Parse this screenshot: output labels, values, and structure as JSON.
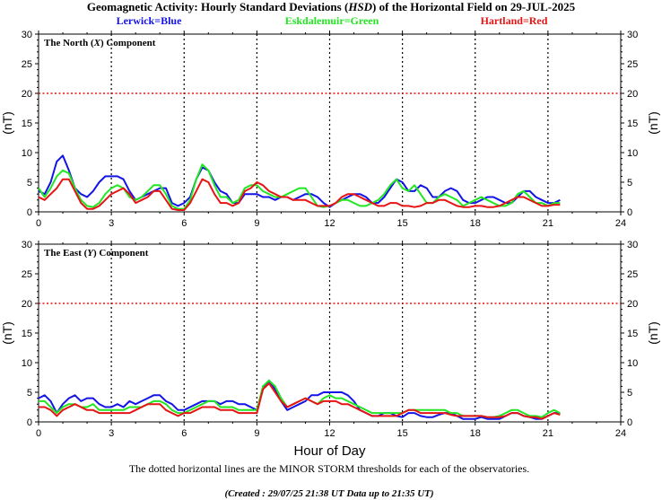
{
  "header": {
    "title_pre": "Geomagnetic Activity: Hourly Standard Deviations (",
    "title_em": "HSD",
    "title_post": ") of the Horizontal Field on 29-JUL-2025"
  },
  "legend": [
    {
      "text": "Lerwick=Blue",
      "color": "#1414e6"
    },
    {
      "text": "Eskdalemuir=Green",
      "color": "#22e622"
    },
    {
      "text": "Hartland=Red",
      "color": "#e61414"
    }
  ],
  "footer": {
    "note": "The dotted horizontal lines are the MINOR STORM thresholds for each of the observatories.",
    "created": "(Created : 29/07/25 21:38 UT  Data up to 21:35 UT)"
  },
  "chart_data": [
    {
      "type": "line",
      "panel_label_pre": "The North (",
      "panel_label_em": "X",
      "panel_label_post": ") Component",
      "xlabel": "",
      "ylabel": "(nT)",
      "xlim": [
        0,
        24
      ],
      "ylim": [
        0,
        30
      ],
      "xticks": [
        "0",
        "3",
        "6",
        "9",
        "12",
        "15",
        "18",
        "21",
        "24"
      ],
      "yticks": [
        "0",
        "5",
        "10",
        "15",
        "20",
        "25",
        "30"
      ],
      "threshold": 20,
      "grid": "dotted vertical lines every 3 hours",
      "x": [
        0.0,
        0.25,
        0.5,
        0.75,
        1.0,
        1.25,
        1.5,
        1.75,
        2.0,
        2.25,
        2.5,
        2.75,
        3.0,
        3.25,
        3.5,
        3.75,
        4.0,
        4.25,
        4.5,
        4.75,
        5.0,
        5.25,
        5.5,
        5.75,
        6.0,
        6.25,
        6.5,
        6.75,
        7.0,
        7.25,
        7.5,
        7.75,
        8.0,
        8.25,
        8.5,
        8.75,
        9.0,
        9.25,
        9.5,
        9.75,
        10.0,
        10.25,
        10.5,
        10.75,
        11.0,
        11.25,
        11.5,
        11.75,
        12.0,
        12.25,
        12.5,
        12.75,
        13.0,
        13.25,
        13.5,
        13.75,
        14.0,
        14.25,
        14.5,
        14.75,
        15.0,
        15.25,
        15.5,
        15.75,
        16.0,
        16.25,
        16.5,
        16.75,
        17.0,
        17.25,
        17.5,
        17.75,
        18.0,
        18.25,
        18.5,
        18.75,
        19.0,
        19.25,
        19.5,
        19.75,
        20.0,
        20.25,
        20.5,
        20.75,
        21.0,
        21.25,
        21.5
      ],
      "series": [
        {
          "name": "Lerwick",
          "color": "#1414e6",
          "values": [
            3.5,
            3.0,
            5.0,
            8.5,
            9.5,
            7.0,
            4.0,
            3.0,
            2.5,
            3.5,
            5.0,
            6.0,
            6.0,
            6.0,
            5.5,
            3.5,
            2.0,
            2.5,
            3.0,
            3.5,
            4.0,
            4.0,
            1.5,
            1.0,
            1.5,
            2.5,
            5.5,
            7.5,
            7.0,
            5.0,
            3.5,
            3.0,
            1.5,
            1.5,
            3.0,
            3.0,
            3.0,
            2.5,
            2.5,
            2.0,
            2.5,
            2.5,
            2.0,
            2.5,
            3.0,
            3.0,
            2.5,
            1.5,
            0.8,
            1.5,
            2.0,
            2.5,
            3.0,
            3.0,
            2.5,
            1.5,
            1.5,
            2.5,
            4.0,
            5.5,
            5.0,
            3.5,
            3.5,
            4.5,
            4.0,
            2.5,
            2.5,
            3.5,
            4.0,
            3.5,
            2.0,
            1.5,
            1.5,
            2.0,
            2.5,
            2.5,
            2.0,
            1.5,
            1.5,
            2.5,
            3.5,
            3.5,
            2.5,
            2.0,
            1.5,
            1.5,
            2.0
          ]
        },
        {
          "name": "Eskdalemuir",
          "color": "#22e622",
          "values": [
            4.0,
            2.5,
            4.0,
            6.0,
            7.0,
            6.5,
            4.0,
            2.0,
            1.0,
            0.8,
            1.5,
            3.0,
            4.0,
            4.5,
            4.0,
            2.5,
            2.0,
            2.5,
            3.5,
            4.5,
            4.5,
            3.0,
            1.0,
            0.5,
            0.5,
            2.0,
            5.5,
            8.0,
            7.0,
            4.5,
            2.5,
            2.5,
            1.5,
            2.0,
            4.0,
            4.5,
            4.5,
            3.5,
            3.0,
            2.5,
            2.5,
            3.0,
            3.5,
            4.0,
            4.0,
            2.5,
            1.0,
            0.8,
            1.0,
            1.5,
            2.0,
            2.0,
            1.5,
            1.0,
            1.0,
            1.5,
            2.0,
            3.0,
            4.5,
            5.5,
            4.0,
            3.5,
            4.5,
            3.0,
            1.5,
            1.5,
            2.5,
            3.0,
            2.5,
            2.0,
            1.0,
            1.5,
            2.0,
            2.5,
            2.0,
            1.5,
            1.0,
            1.0,
            1.5,
            3.0,
            3.5,
            2.5,
            1.5,
            1.5,
            1.0,
            1.5,
            1.5
          ]
        },
        {
          "name": "Hartland",
          "color": "#e61414",
          "values": [
            2.5,
            2.0,
            3.0,
            4.0,
            5.5,
            5.5,
            3.5,
            1.5,
            0.5,
            0.5,
            1.0,
            2.0,
            3.0,
            3.5,
            4.0,
            3.0,
            1.5,
            2.0,
            2.5,
            3.5,
            3.5,
            2.0,
            0.5,
            0.3,
            0.3,
            1.5,
            3.5,
            5.5,
            5.0,
            3.0,
            1.5,
            1.5,
            1.0,
            1.5,
            3.5,
            4.0,
            5.0,
            4.5,
            3.5,
            3.0,
            2.5,
            2.5,
            2.0,
            2.0,
            2.0,
            1.5,
            1.0,
            1.0,
            1.0,
            1.5,
            2.5,
            3.0,
            3.0,
            2.5,
            2.0,
            1.5,
            1.0,
            1.0,
            1.5,
            1.5,
            1.0,
            1.0,
            0.8,
            1.0,
            1.5,
            1.5,
            2.0,
            2.0,
            1.5,
            1.0,
            0.8,
            0.8,
            1.0,
            1.0,
            0.8,
            0.8,
            1.0,
            1.5,
            2.0,
            2.5,
            2.5,
            2.0,
            1.5,
            1.0,
            1.0,
            1.2,
            1.2
          ]
        }
      ]
    },
    {
      "type": "line",
      "panel_label_pre": "The East (",
      "panel_label_em": "Y",
      "panel_label_post": ") Component",
      "xlabel": "Hour of Day",
      "ylabel": "(nT)",
      "xlim": [
        0,
        24
      ],
      "ylim": [
        0,
        30
      ],
      "xticks": [
        "0",
        "3",
        "6",
        "9",
        "12",
        "15",
        "18",
        "21",
        "24"
      ],
      "yticks": [
        "0",
        "5",
        "10",
        "15",
        "20",
        "25",
        "30"
      ],
      "threshold": 20,
      "grid": "dotted vertical lines every 3 hours",
      "x": [
        0.0,
        0.25,
        0.5,
        0.75,
        1.0,
        1.25,
        1.5,
        1.75,
        2.0,
        2.25,
        2.5,
        2.75,
        3.0,
        3.25,
        3.5,
        3.75,
        4.0,
        4.25,
        4.5,
        4.75,
        5.0,
        5.25,
        5.5,
        5.75,
        6.0,
        6.25,
        6.5,
        6.75,
        7.0,
        7.25,
        7.5,
        7.75,
        8.0,
        8.25,
        8.5,
        8.75,
        9.0,
        9.25,
        9.5,
        9.75,
        10.0,
        10.25,
        10.5,
        10.75,
        11.0,
        11.25,
        11.5,
        11.75,
        12.0,
        12.25,
        12.5,
        12.75,
        13.0,
        13.25,
        13.5,
        13.75,
        14.0,
        14.25,
        14.5,
        14.75,
        15.0,
        15.25,
        15.5,
        15.75,
        16.0,
        16.25,
        16.5,
        16.75,
        17.0,
        17.25,
        17.5,
        17.75,
        18.0,
        18.25,
        18.5,
        18.75,
        19.0,
        19.25,
        19.5,
        19.75,
        20.0,
        20.25,
        20.5,
        20.75,
        21.0,
        21.25,
        21.5
      ],
      "series": [
        {
          "name": "Lerwick",
          "color": "#1414e6",
          "values": [
            4.0,
            4.5,
            3.5,
            1.5,
            3.0,
            4.0,
            4.5,
            3.5,
            4.0,
            4.0,
            3.0,
            2.5,
            2.5,
            3.0,
            2.5,
            3.5,
            3.0,
            3.5,
            4.0,
            4.5,
            4.5,
            3.5,
            3.0,
            2.0,
            2.0,
            2.5,
            3.0,
            3.5,
            3.5,
            3.5,
            3.0,
            3.5,
            3.5,
            3.0,
            3.0,
            2.5,
            2.0,
            5.5,
            7.0,
            5.5,
            3.5,
            2.0,
            2.5,
            3.0,
            3.5,
            4.5,
            4.5,
            5.0,
            5.0,
            5.0,
            5.0,
            4.5,
            3.5,
            2.0,
            1.5,
            1.0,
            1.0,
            1.5,
            1.5,
            1.0,
            0.8,
            1.5,
            1.5,
            1.0,
            0.8,
            0.8,
            1.2,
            1.5,
            1.5,
            1.0,
            0.5,
            0.5,
            0.5,
            0.8,
            0.5,
            0.5,
            0.5,
            1.0,
            1.5,
            1.5,
            1.0,
            0.8,
            0.5,
            0.5,
            1.0,
            1.5,
            1.5
          ]
        },
        {
          "name": "Eskdalemuir",
          "color": "#22e622",
          "values": [
            3.5,
            3.5,
            2.5,
            1.5,
            2.5,
            3.0,
            3.0,
            2.5,
            2.5,
            3.0,
            2.0,
            2.0,
            2.0,
            2.0,
            2.0,
            2.5,
            2.5,
            2.5,
            3.0,
            3.5,
            3.5,
            3.0,
            2.0,
            1.5,
            1.5,
            2.0,
            2.5,
            3.0,
            3.5,
            3.5,
            2.5,
            2.5,
            2.5,
            2.0,
            2.0,
            2.0,
            2.0,
            6.0,
            7.0,
            6.0,
            4.0,
            2.5,
            3.0,
            3.5,
            4.0,
            3.5,
            3.0,
            4.0,
            4.5,
            4.0,
            4.0,
            3.5,
            3.0,
            2.5,
            2.0,
            1.5,
            1.5,
            1.5,
            1.5,
            1.5,
            1.5,
            2.0,
            2.0,
            2.0,
            2.0,
            2.0,
            2.0,
            2.0,
            1.5,
            1.5,
            1.0,
            1.0,
            1.0,
            1.0,
            0.8,
            0.8,
            1.0,
            1.5,
            2.0,
            2.0,
            1.5,
            1.0,
            1.0,
            0.8,
            1.5,
            2.0,
            1.5
          ]
        },
        {
          "name": "Hartland",
          "color": "#e61414",
          "values": [
            2.5,
            2.5,
            2.0,
            1.0,
            2.0,
            2.5,
            3.0,
            2.5,
            2.0,
            2.0,
            1.5,
            1.5,
            1.5,
            1.5,
            1.5,
            1.5,
            2.0,
            2.5,
            3.0,
            3.0,
            3.0,
            2.0,
            1.5,
            1.0,
            1.5,
            1.5,
            2.0,
            2.5,
            2.5,
            2.5,
            2.0,
            2.0,
            2.0,
            1.5,
            1.5,
            1.5,
            1.5,
            5.5,
            6.5,
            5.0,
            3.5,
            2.5,
            3.0,
            3.5,
            4.0,
            3.5,
            3.0,
            3.5,
            3.5,
            3.5,
            3.0,
            3.0,
            2.5,
            2.0,
            1.5,
            1.0,
            1.0,
            1.0,
            1.0,
            1.0,
            1.5,
            2.0,
            2.0,
            1.5,
            1.5,
            1.5,
            1.5,
            1.5,
            1.2,
            1.0,
            1.0,
            1.0,
            1.0,
            1.0,
            0.8,
            0.8,
            0.8,
            1.0,
            1.5,
            1.5,
            1.0,
            0.8,
            0.8,
            0.5,
            1.0,
            1.5,
            1.2
          ]
        }
      ]
    }
  ]
}
